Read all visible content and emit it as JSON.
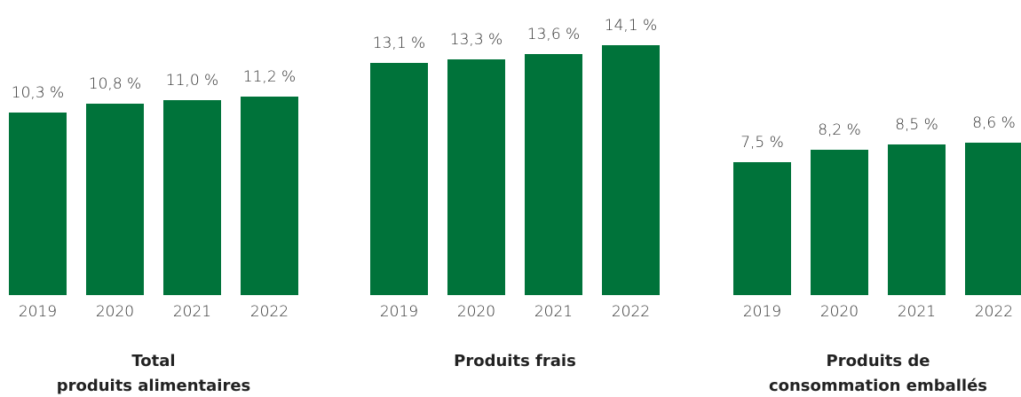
{
  "chart_data": [
    {
      "type": "bar",
      "title": [
        "Total",
        "produits alimentaires"
      ],
      "categories": [
        "2019",
        "2020",
        "2021",
        "2022"
      ],
      "values": [
        10.3,
        10.8,
        11.0,
        11.2
      ],
      "value_labels": [
        "10,3 %",
        "10,8 %",
        "11,0 %",
        "11,2 %"
      ],
      "color": "#00733a"
    },
    {
      "type": "bar",
      "title": [
        "Produits frais"
      ],
      "categories": [
        "2019",
        "2020",
        "2021",
        "2022"
      ],
      "values": [
        13.1,
        13.3,
        13.6,
        14.1
      ],
      "value_labels": [
        "13,1 %",
        "13,3 %",
        "13,6 %",
        "14,1 %"
      ],
      "color": "#00733a"
    },
    {
      "type": "bar",
      "title": [
        "Produits de",
        "consommation emballés"
      ],
      "categories": [
        "2019",
        "2020",
        "2021",
        "2022"
      ],
      "values": [
        7.5,
        8.2,
        8.5,
        8.6
      ],
      "value_labels": [
        "7,5 %",
        "8,2 %",
        "8,5 %",
        "8,6 %"
      ],
      "color": "#00733a"
    }
  ]
}
